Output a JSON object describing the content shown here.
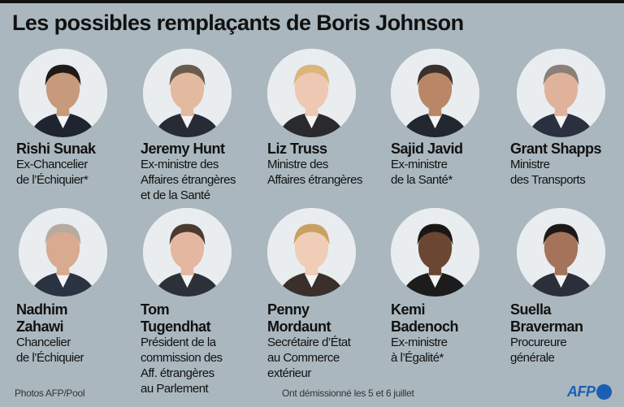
{
  "title": "Les possibles remplaçants de Boris Johnson",
  "people": [
    {
      "name": [
        "Rishi Sunak"
      ],
      "role": [
        "Ex-Chancelier",
        "de l’Échiquier*"
      ]
    },
    {
      "name": [
        "Jeremy Hunt"
      ],
      "role": [
        "Ex-ministre des",
        "Affaires étrangères",
        "et de la Santé"
      ]
    },
    {
      "name": [
        "Liz Truss"
      ],
      "role": [
        "Ministre des",
        "Affaires étrangères"
      ]
    },
    {
      "name": [
        "Sajid Javid"
      ],
      "role": [
        "Ex-ministre",
        "de la Santé*"
      ]
    },
    {
      "name": [
        "Grant Shapps"
      ],
      "role": [
        "Ministre",
        "des Transports"
      ]
    },
    {
      "name": [
        "Nadhim",
        "Zahawi"
      ],
      "role": [
        "Chancelier",
        "de l’Échiquier"
      ]
    },
    {
      "name": [
        "Tom",
        "Tugendhat"
      ],
      "role": [
        "Président de la",
        "commission des",
        "Aff. étrangères",
        "au Parlement"
      ]
    },
    {
      "name": [
        "Penny",
        "Mordaunt"
      ],
      "role": [
        "Secrétaire d’État",
        "au Commerce",
        "extérieur"
      ]
    },
    {
      "name": [
        "Kemi",
        "Badenoch"
      ],
      "role": [
        "Ex-ministre",
        "à l’Égalité*"
      ]
    },
    {
      "name": [
        "Suella",
        "Braverman"
      ],
      "role": [
        "Procureure",
        "générale"
      ]
    }
  ],
  "footer": {
    "credit": "Photos AFP/Pool",
    "note": "Ont démissionné les 5 et 6 juillet",
    "logo": "AFP"
  },
  "colors": {
    "background": "#aab7be",
    "logo": "#1b5fb5"
  }
}
